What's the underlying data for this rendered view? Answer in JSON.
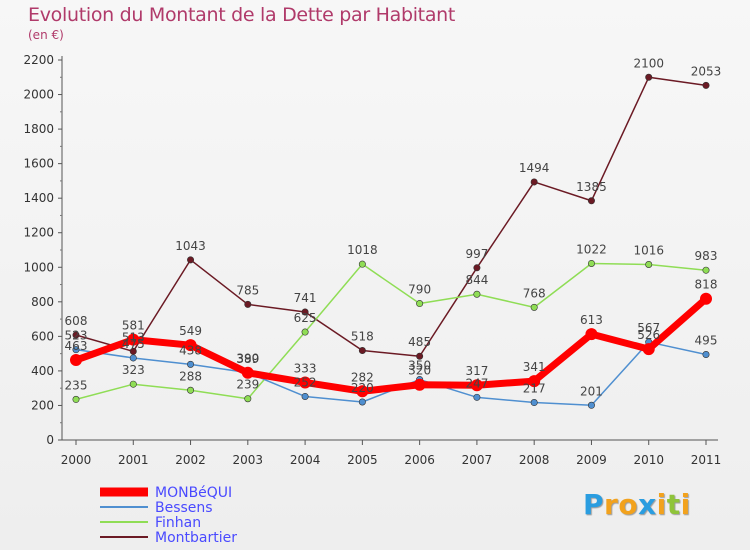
{
  "chart_data": {
    "type": "line",
    "title": "Evolution du Montant de la Dette par Habitant",
    "subtitle": "(en €)",
    "categories": [
      "2000",
      "2001",
      "2002",
      "2003",
      "2004",
      "2005",
      "2006",
      "2007",
      "2008",
      "2009",
      "2010",
      "2011"
    ],
    "ylim": [
      0,
      2200
    ],
    "yticks": [
      0,
      200,
      400,
      600,
      800,
      1000,
      1200,
      1400,
      1600,
      1800,
      2000,
      2200
    ],
    "grid": false,
    "legend": "bottom-left",
    "series": [
      {
        "name": "Montbartier",
        "color": "#6b1a24",
        "values": [
          608,
          513,
          1043,
          785,
          741,
          518,
          485,
          997,
          1494,
          1385,
          2100,
          2053
        ]
      },
      {
        "name": "Finhan",
        "color": "#8fdd55",
        "values": [
          235,
          323,
          288,
          239,
          625,
          1018,
          790,
          844,
          768,
          1022,
          1016,
          983
        ]
      },
      {
        "name": "Bessens",
        "color": "#4f8fd0",
        "values": [
          523,
          475,
          438,
          390,
          252,
          220,
          350,
          247,
          217,
          201,
          567,
          495
        ]
      },
      {
        "name": "MONBéQUI",
        "color": "#ff0000",
        "values": [
          463,
          581,
          549,
          389,
          333,
          282,
          320,
          317,
          341,
          613,
          526,
          818
        ]
      }
    ],
    "data_labels": {
      "Montbartier": [
        "608",
        "513",
        "1043",
        "785",
        "741",
        "518",
        "485",
        "997",
        "1494",
        "1385",
        "2100",
        "2053"
      ],
      "Finhan": [
        "235",
        "323",
        "288",
        "239",
        "625",
        "1018",
        "790",
        "844",
        "768",
        "1022",
        "1016",
        "983"
      ],
      "Bessens": [
        "523",
        "475",
        "438",
        "390",
        "252",
        "220",
        "350",
        "247",
        "217",
        "201",
        "567",
        "495"
      ],
      "MONBéQUI": [
        "463",
        "581",
        "549",
        "389",
        "333",
        "282",
        "320",
        "317",
        "341",
        "613",
        "526",
        "818"
      ]
    },
    "legend_order": [
      "MONBéQUI",
      "Bessens",
      "Finhan",
      "Montbartier"
    ]
  },
  "logo": {
    "letters": [
      "P",
      "r",
      "o",
      "x",
      "i",
      "t",
      "i"
    ],
    "colors": [
      "#2a9de0",
      "#f2a21d",
      "#f2a21d",
      "#2a9de0",
      "#f2a21d",
      "#8fc43a",
      "#f2a21d"
    ]
  }
}
